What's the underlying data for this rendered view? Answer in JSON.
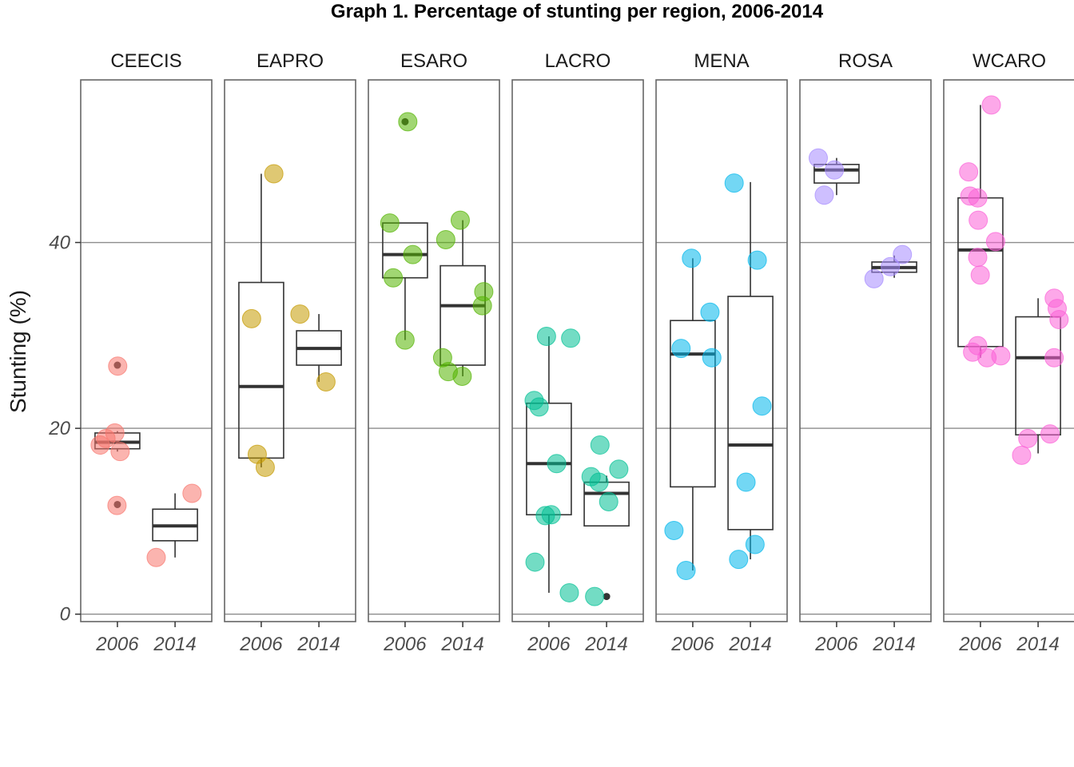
{
  "chart_data": {
    "type": "box",
    "title": "Graph 1. Percentage of stunting per region, 2006-2014",
    "ylabel": "Stunting (%)",
    "xlabel": "",
    "ylim": [
      -0.8,
      57.5
    ],
    "yticks": [
      0,
      20,
      40
    ],
    "categories": [
      "2006",
      "2014"
    ],
    "panels": [
      {
        "name": "CEECIS",
        "color": "#F8766D",
        "groups": [
          {
            "x": "2006",
            "box": {
              "q1": 17.8,
              "median": 18.5,
              "q3": 19.5,
              "whisker_low": 17.5,
              "whisker_high": 19.7
            },
            "outliers": [
              26.8,
              11.8
            ],
            "points": [
              11.7,
              17.5,
              18.2,
              18.9,
              19.5,
              26.7
            ]
          },
          {
            "x": "2014",
            "box": {
              "q1": 7.9,
              "median": 9.5,
              "q3": 11.3,
              "whisker_low": 6.1,
              "whisker_high": 13.0
            },
            "outliers": [],
            "points": [
              6.1,
              13.0
            ]
          }
        ]
      },
      {
        "name": "EAPRO",
        "color": "#C49A00",
        "groups": [
          {
            "x": "2006",
            "box": {
              "q1": 16.8,
              "median": 24.5,
              "q3": 35.7,
              "whisker_low": 15.8,
              "whisker_high": 47.4
            },
            "outliers": [],
            "points": [
              15.8,
              17.2,
              31.8,
              47.4
            ]
          },
          {
            "x": "2014",
            "box": {
              "q1": 26.8,
              "median": 28.6,
              "q3": 30.5,
              "whisker_low": 25.0,
              "whisker_high": 32.3
            },
            "outliers": [],
            "points": [
              25.0,
              32.3
            ]
          }
        ]
      },
      {
        "name": "ESARO",
        "color": "#53B400",
        "groups": [
          {
            "x": "2006",
            "box": {
              "q1": 36.2,
              "median": 38.7,
              "q3": 42.1,
              "whisker_low": 29.5,
              "whisker_high": 42.1
            },
            "outliers": [
              53.0
            ],
            "points": [
              29.5,
              36.2,
              38.7,
              42.1,
              53.0
            ]
          },
          {
            "x": "2014",
            "box": {
              "q1": 26.8,
              "median": 33.2,
              "q3": 37.5,
              "whisker_low": 25.6,
              "whisker_high": 42.4
            },
            "outliers": [],
            "points": [
              25.6,
              26.1,
              27.6,
              33.2,
              34.7,
              40.3,
              42.4
            ]
          }
        ]
      },
      {
        "name": "LACRO",
        "color": "#00C094",
        "groups": [
          {
            "x": "2006",
            "box": {
              "q1": 10.7,
              "median": 16.2,
              "q3": 22.7,
              "whisker_low": 2.3,
              "whisker_high": 29.9
            },
            "outliers": [],
            "points": [
              2.3,
              5.6,
              10.6,
              10.7,
              16.2,
              22.3,
              23.0,
              29.7,
              29.9
            ]
          },
          {
            "x": "2014",
            "box": {
              "q1": 9.5,
              "median": 13.0,
              "q3": 14.2,
              "whisker_low": 9.5,
              "whisker_high": 14.9
            },
            "outliers": [
              1.9
            ],
            "points": [
              1.9,
              12.1,
              14.2,
              14.8,
              15.6,
              18.2
            ]
          }
        ]
      },
      {
        "name": "MENA",
        "color": "#00B6EB",
        "groups": [
          {
            "x": "2006",
            "box": {
              "q1": 13.7,
              "median": 28.0,
              "q3": 31.6,
              "whisker_low": 4.7,
              "whisker_high": 38.3
            },
            "outliers": [],
            "points": [
              4.7,
              9.0,
              27.6,
              28.6,
              32.5,
              38.3
            ]
          },
          {
            "x": "2014",
            "box": {
              "q1": 9.1,
              "median": 18.2,
              "q3": 34.2,
              "whisker_low": 5.9,
              "whisker_high": 46.5
            },
            "outliers": [],
            "points": [
              5.9,
              7.5,
              14.2,
              22.4,
              38.1,
              46.4
            ]
          }
        ]
      },
      {
        "name": "ROSA",
        "color": "#A58AFF",
        "groups": [
          {
            "x": "2006",
            "box": {
              "q1": 46.4,
              "median": 47.8,
              "q3": 48.4,
              "whisker_low": 45.1,
              "whisker_high": 49.1
            },
            "outliers": [],
            "points": [
              45.1,
              47.8,
              49.1
            ]
          },
          {
            "x": "2014",
            "box": {
              "q1": 36.8,
              "median": 37.3,
              "q3": 37.9,
              "whisker_low": 36.2,
              "whisker_high": 38.6
            },
            "outliers": [],
            "points": [
              36.1,
              37.4,
              38.7
            ]
          }
        ]
      },
      {
        "name": "WCARO",
        "color": "#FB61D7",
        "groups": [
          {
            "x": "2006",
            "box": {
              "q1": 28.8,
              "median": 39.2,
              "q3": 44.8,
              "whisker_low": 27.6,
              "whisker_high": 54.8
            },
            "outliers": [],
            "points": [
              27.6,
              27.8,
              28.2,
              28.9,
              36.5,
              38.4,
              40.1,
              42.4,
              44.8,
              45.0,
              47.6,
              54.8
            ]
          },
          {
            "x": "2014",
            "box": {
              "q1": 19.3,
              "median": 27.6,
              "q3": 32.0,
              "whisker_low": 17.3,
              "whisker_high": 34.0
            },
            "outliers": [],
            "points": [
              17.1,
              18.9,
              19.4,
              27.6,
              31.7,
              32.9,
              34.0
            ]
          }
        ]
      }
    ]
  }
}
